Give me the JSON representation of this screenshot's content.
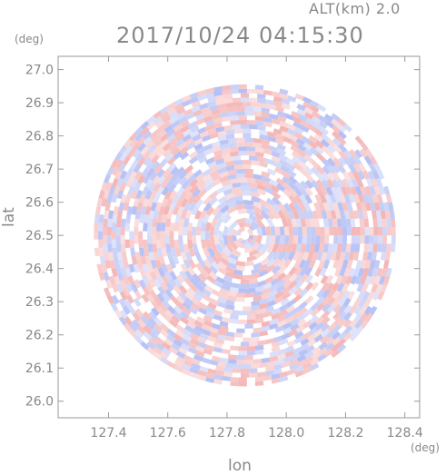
{
  "header": {
    "altitude": "ALT(km) 2.0",
    "timestamp": "2017/10/24 04:15:30"
  },
  "chart_data": {
    "type": "heatmap",
    "title": "2017/10/24 04:15:30",
    "subtitle": "ALT(km) 2.0",
    "xlabel": "lon",
    "ylabel": "lat",
    "x_unit": "(deg)",
    "y_unit": "(deg)",
    "xlim": [
      127.23,
      128.45
    ],
    "ylim": [
      25.95,
      27.04
    ],
    "x_ticks": [
      "127.4",
      "127.6",
      "127.8",
      "128.0",
      "128.2",
      "128.4"
    ],
    "y_ticks": [
      "26.0",
      "26.1",
      "26.2",
      "26.3",
      "26.4",
      "26.5",
      "26.6",
      "26.7",
      "26.8",
      "26.9",
      "27.0"
    ],
    "radar_center": {
      "lon": 127.86,
      "lat": 26.5
    },
    "radar_radius_deg": 0.51,
    "colors": {
      "positive": "#f2a8a8",
      "negative": "#a8b4f2",
      "neutral": "#ffffff",
      "axis": "#9a9a9a"
    },
    "grid": false
  }
}
